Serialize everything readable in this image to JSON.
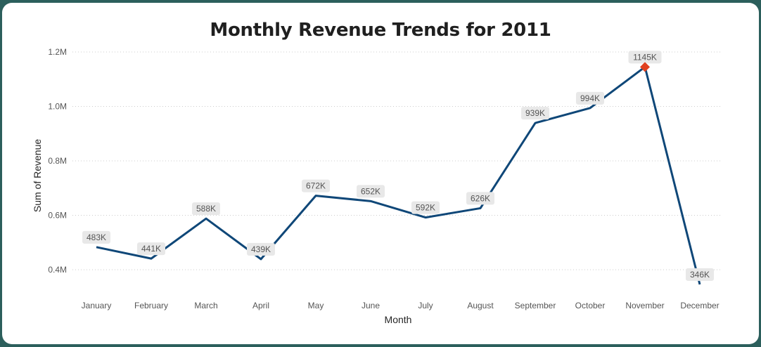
{
  "chart_data": {
    "type": "line",
    "title": "Monthly Revenue Trends for 2011",
    "xlabel": "Month",
    "ylabel": "Sum of Revenue",
    "categories": [
      "January",
      "February",
      "March",
      "April",
      "May",
      "June",
      "July",
      "August",
      "September",
      "October",
      "November",
      "December"
    ],
    "series": [
      {
        "values": [
          483000,
          441000,
          588000,
          439000,
          672000,
          652000,
          592000,
          626000,
          939000,
          994000,
          1145000,
          346000
        ],
        "labels": [
          "483K",
          "441K",
          "588K",
          "439K",
          "672K",
          "652K",
          "592K",
          "626K",
          "939K",
          "994K",
          "1145K",
          "346K"
        ],
        "color": "#0f4778"
      }
    ],
    "y_ticks": [
      400000,
      600000,
      800000,
      1000000,
      1200000
    ],
    "y_tick_labels": [
      "0.4M",
      "0.6M",
      "0.8M",
      "1.0M",
      "1.2M"
    ],
    "ylim": [
      330000,
      1200000
    ],
    "grid": true,
    "highlight_index": 10,
    "highlight_color": "#e0401f"
  },
  "colors": {
    "background": "#2c5f5c",
    "card": "#ffffff",
    "label_bg": "#e8e8e8",
    "grid": "#cccccc"
  }
}
